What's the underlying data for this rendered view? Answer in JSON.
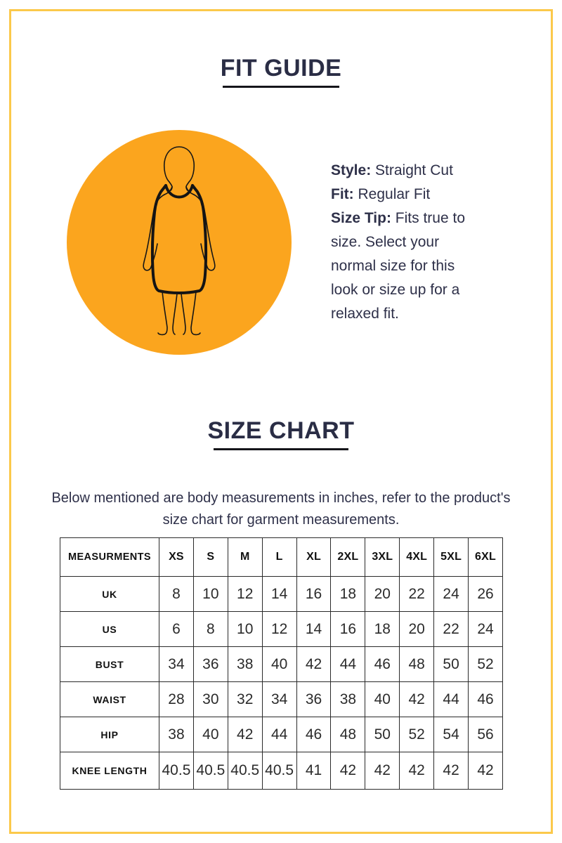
{
  "page": {
    "frame_border_color": "#FBC94B",
    "heading_color": "#2A2D45",
    "body_text_color": "#2E3049"
  },
  "fit_guide": {
    "title": "FIT GUIDE",
    "details": [
      {
        "label": "Style:",
        "text": " Straight Cut"
      },
      {
        "label": "Fit:",
        "text": " Regular Fit"
      },
      {
        "label": "Size Tip:",
        "text": " Fits true to size. Select your normal size for this look or size up for a relaxed fit."
      }
    ],
    "illustration": {
      "icon": "straight-cut-dress-body-figure",
      "circle_color": "#FBA51E",
      "line_color": "#161616"
    }
  },
  "size_chart": {
    "title": "SIZE CHART",
    "description": "Below mentioned are body measurements in inches, refer to the product's size chart for garment measurements.",
    "table": {
      "header": [
        "MEASURMENTS",
        "XS",
        "S",
        "M",
        "L",
        "XL",
        "2XL",
        "3XL",
        "4XL",
        "5XL",
        "6XL"
      ],
      "rows": [
        {
          "label": "UK",
          "values": [
            "8",
            "10",
            "12",
            "14",
            "16",
            "18",
            "20",
            "22",
            "24",
            "26"
          ]
        },
        {
          "label": "US",
          "values": [
            "6",
            "8",
            "10",
            "12",
            "14",
            "16",
            "18",
            "20",
            "22",
            "24"
          ]
        },
        {
          "label": "BUST",
          "values": [
            "34",
            "36",
            "38",
            "40",
            "42",
            "44",
            "46",
            "48",
            "50",
            "52"
          ]
        },
        {
          "label": "WAIST",
          "values": [
            "28",
            "30",
            "32",
            "34",
            "36",
            "38",
            "40",
            "42",
            "44",
            "46"
          ]
        },
        {
          "label": "HIP",
          "values": [
            "38",
            "40",
            "42",
            "44",
            "46",
            "48",
            "50",
            "52",
            "54",
            "56"
          ]
        },
        {
          "label": "KNEE LENGTH",
          "values": [
            "40.5",
            "40.5",
            "40.5",
            "40.5",
            "41",
            "42",
            "42",
            "42",
            "42",
            "42"
          ]
        }
      ]
    }
  }
}
